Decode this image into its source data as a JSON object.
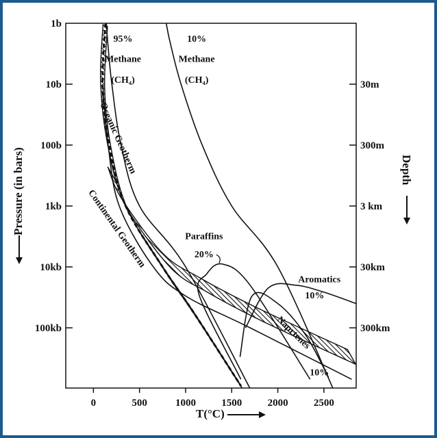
{
  "chart_data": {
    "type": "line",
    "xlabel": "T(°C)",
    "ylabel": "Pressure (in bars)",
    "right_label": "Depth",
    "xlim": [
      -300,
      2850
    ],
    "x_ticks": [
      0,
      500,
      1000,
      1500,
      2000,
      2500
    ],
    "y_scale": "log",
    "y_ticks": [
      "1b",
      "10b",
      "100b",
      "1kb",
      "10kb",
      "100kb"
    ],
    "depth_ticks": [
      "30m",
      "300m",
      "3 km",
      "30km",
      "300km"
    ],
    "grid": false,
    "series": [
      {
        "name": "95% Methane (CH4)",
        "x": [
          140,
          155,
          200,
          300,
          500,
          1000,
          1700
        ],
        "y": [
          1,
          2,
          10,
          100,
          1000,
          10000,
          1000000
        ]
      },
      {
        "name": "10% Methane (CH4)",
        "x": [
          790,
          830,
          950,
          1180,
          1500,
          2000,
          2600
        ],
        "y": [
          1,
          2,
          10,
          100,
          1000,
          10000,
          1000000
        ]
      },
      {
        "name": "Oceanic Geotherm",
        "x": [
          130,
          100,
          170,
          350,
          750,
          1100,
          1600
        ],
        "y": [
          1,
          10,
          100,
          1000,
          10000,
          60000,
          900000
        ]
      },
      {
        "name": "Continental Geotherm",
        "x": [
          100,
          160,
          280,
          650,
          1000,
          1700,
          2800
        ],
        "y": [
          10,
          100,
          1000,
          10000,
          30000,
          100000,
          700000
        ]
      },
      {
        "name": "Aromatics 10%",
        "x": [
          1650,
          1900,
          2200,
          2500,
          2850
        ],
        "y": [
          100000,
          22000,
          20000,
          26000,
          40000
        ]
      },
      {
        "name": "Naprtenes 10%",
        "x": [
          1590,
          1720,
          2000,
          2300,
          2550
        ],
        "y": [
          300000,
          30000,
          40000,
          130000,
          650000
        ]
      },
      {
        "name": "Paraffins 20%",
        "x": [
          1600,
          1150,
          1230,
          1400,
          1700,
          2350
        ],
        "y": [
          700000,
          30000,
          13000,
          9000,
          20000,
          700000
        ]
      }
    ],
    "annotations": [
      {
        "text": "95%",
        "x": 320,
        "y": 2.0
      },
      {
        "text": "Methane",
        "x": 320,
        "y": 4.3
      },
      {
        "text": "(CH₄)",
        "x": 320,
        "y": 9.5
      },
      {
        "text": "10%",
        "x": 1120,
        "y": 2.0
      },
      {
        "text": "Methane",
        "x": 1120,
        "y": 4.3
      },
      {
        "text": "(CH₄)",
        "x": 1120,
        "y": 9.5
      },
      {
        "text": "Oceanic Geotherm",
        "x": 240,
        "y": 80
      },
      {
        "text": "Continental Geotherm",
        "x": 230,
        "y": 2500
      },
      {
        "text": "Paraffins",
        "x": 1200,
        "y": 3500
      },
      {
        "text": "20%",
        "x": 1200,
        "y": 7000
      },
      {
        "text": "Aromatics",
        "x": 2450,
        "y": 18000
      },
      {
        "text": "10%",
        "x": 2400,
        "y": 33000
      },
      {
        "text": "Naprtenes",
        "x": 2150,
        "y": 130000
      },
      {
        "text": "10%",
        "x": 2450,
        "y": 600000
      }
    ],
    "bands": [
      {
        "name": "Oceanic Geotherm hatched band",
        "x": [
          130,
          100,
          170,
          350,
          750,
          1100,
          1600
        ],
        "y": [
          1,
          10,
          100,
          1000,
          10000,
          60000,
          900000
        ]
      },
      {
        "name": "Continental Geotherm hatched band",
        "x": [
          200,
          350,
          800,
          1200,
          1800,
          2800
        ],
        "y": [
          300,
          1000,
          8000,
          20000,
          60000,
          300000
        ]
      }
    ]
  }
}
